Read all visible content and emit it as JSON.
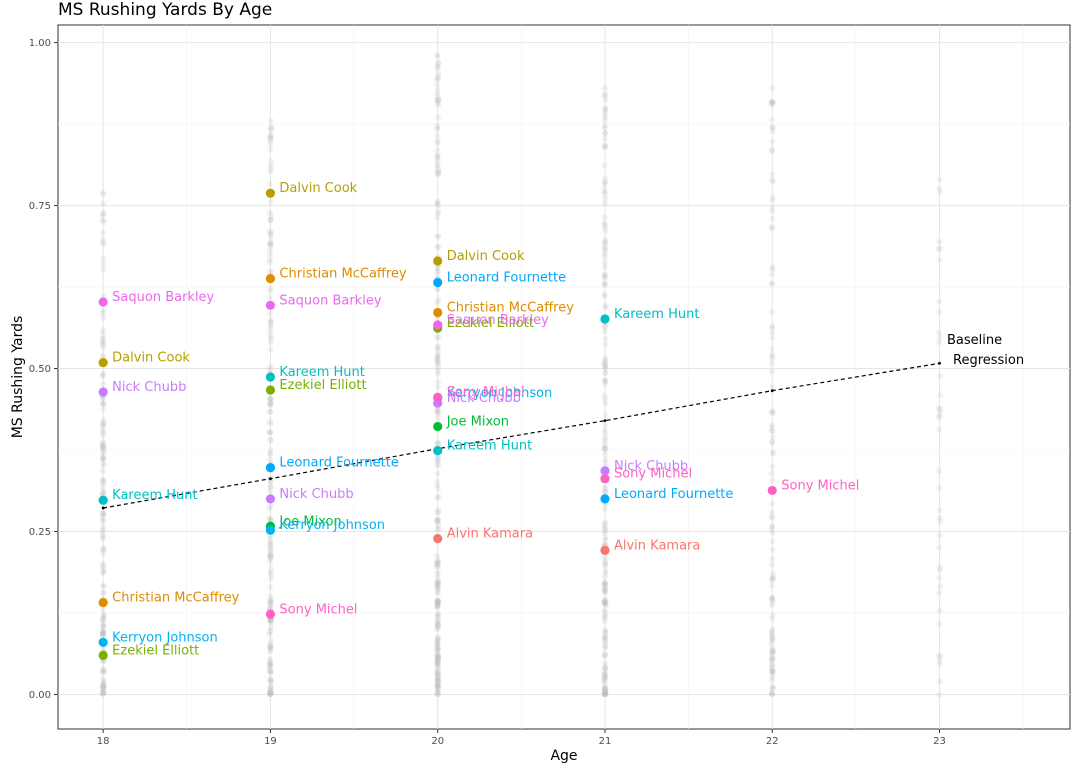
{
  "chart_data": {
    "type": "scatter",
    "title": "MS Rushing Yards By Age",
    "xlabel": "Age",
    "ylabel": "MS Rushing Yards",
    "xlim": [
      17.73,
      23.78
    ],
    "ylim": [
      -0.053,
      1.027
    ],
    "x_ticks": [
      18,
      19,
      20,
      21,
      22,
      23
    ],
    "x_tick_labels": [
      "18",
      "19",
      "20",
      "21",
      "22",
      "23"
    ],
    "y_ticks": [
      0,
      0.25,
      0.5,
      0.75,
      1.0
    ],
    "y_tick_labels": [
      "0.00",
      "0.25",
      "0.50",
      "0.75",
      "1.00"
    ],
    "grid": true,
    "legend": "none",
    "background_cloud": {
      "color": "#bdbdbd",
      "ages": [
        18,
        19,
        20,
        21,
        22,
        23
      ],
      "max_values": [
        0.77,
        0.88,
        0.98,
        0.93,
        0.93,
        0.79
      ],
      "counts": [
        170,
        190,
        240,
        200,
        120,
        40
      ]
    },
    "regression": {
      "label_line1": "Baseline",
      "label_line2": "Regression",
      "points": [
        [
          18,
          0.286
        ],
        [
          19,
          0.331
        ],
        [
          20,
          0.377
        ],
        [
          21,
          0.42
        ],
        [
          22,
          0.466
        ],
        [
          23,
          0.508
        ]
      ],
      "color": "#000000"
    },
    "series": [
      {
        "name": "Alvin Kamara",
        "color": "#F8766D",
        "points": [
          [
            20,
            0.239
          ],
          [
            21,
            0.221
          ]
        ]
      },
      {
        "name": "Christian McCaffrey",
        "color": "#DE8C00",
        "points": [
          [
            18,
            0.141
          ],
          [
            19,
            0.638
          ],
          [
            20,
            0.586
          ]
        ]
      },
      {
        "name": "Dalvin Cook",
        "color": "#B79F00",
        "points": [
          [
            18,
            0.509
          ],
          [
            19,
            0.769
          ],
          [
            20,
            0.665
          ]
        ]
      },
      {
        "name": "Ezekiel Elliott",
        "color": "#7CAE00",
        "points": [
          [
            18,
            0.06
          ],
          [
            19,
            0.467
          ],
          [
            20,
            0.562
          ]
        ]
      },
      {
        "name": "Joe Mixon",
        "color": "#00BA38",
        "points": [
          [
            19,
            0.258
          ],
          [
            20,
            0.411
          ]
        ]
      },
      {
        "name": "Kareem Hunt",
        "color": "#00BFC4",
        "points": [
          [
            18,
            0.298
          ],
          [
            19,
            0.487
          ],
          [
            20,
            0.374
          ],
          [
            21,
            0.576
          ]
        ]
      },
      {
        "name": "Kerryon Johnson",
        "color": "#00B4F0",
        "points": [
          [
            18,
            0.08
          ],
          [
            19,
            0.252
          ],
          [
            20,
            0.455
          ]
        ]
      },
      {
        "name": "Leonard Fournette",
        "color": "#00A9FF",
        "points": [
          [
            19,
            0.348
          ],
          [
            20,
            0.632
          ],
          [
            21,
            0.3
          ]
        ]
      },
      {
        "name": "Nick Chubb",
        "color": "#C77CFF",
        "points": [
          [
            18,
            0.464
          ],
          [
            19,
            0.3
          ],
          [
            20,
            0.447
          ],
          [
            21,
            0.343
          ]
        ]
      },
      {
        "name": "Saquon Barkley",
        "color": "#ED68ED",
        "points": [
          [
            18,
            0.602
          ],
          [
            19,
            0.597
          ],
          [
            20,
            0.567
          ]
        ]
      },
      {
        "name": "Sony Michel",
        "color": "#FF61C3",
        "points": [
          [
            19,
            0.123
          ],
          [
            20,
            0.456
          ],
          [
            21,
            0.331
          ],
          [
            22,
            0.313
          ]
        ]
      }
    ]
  }
}
